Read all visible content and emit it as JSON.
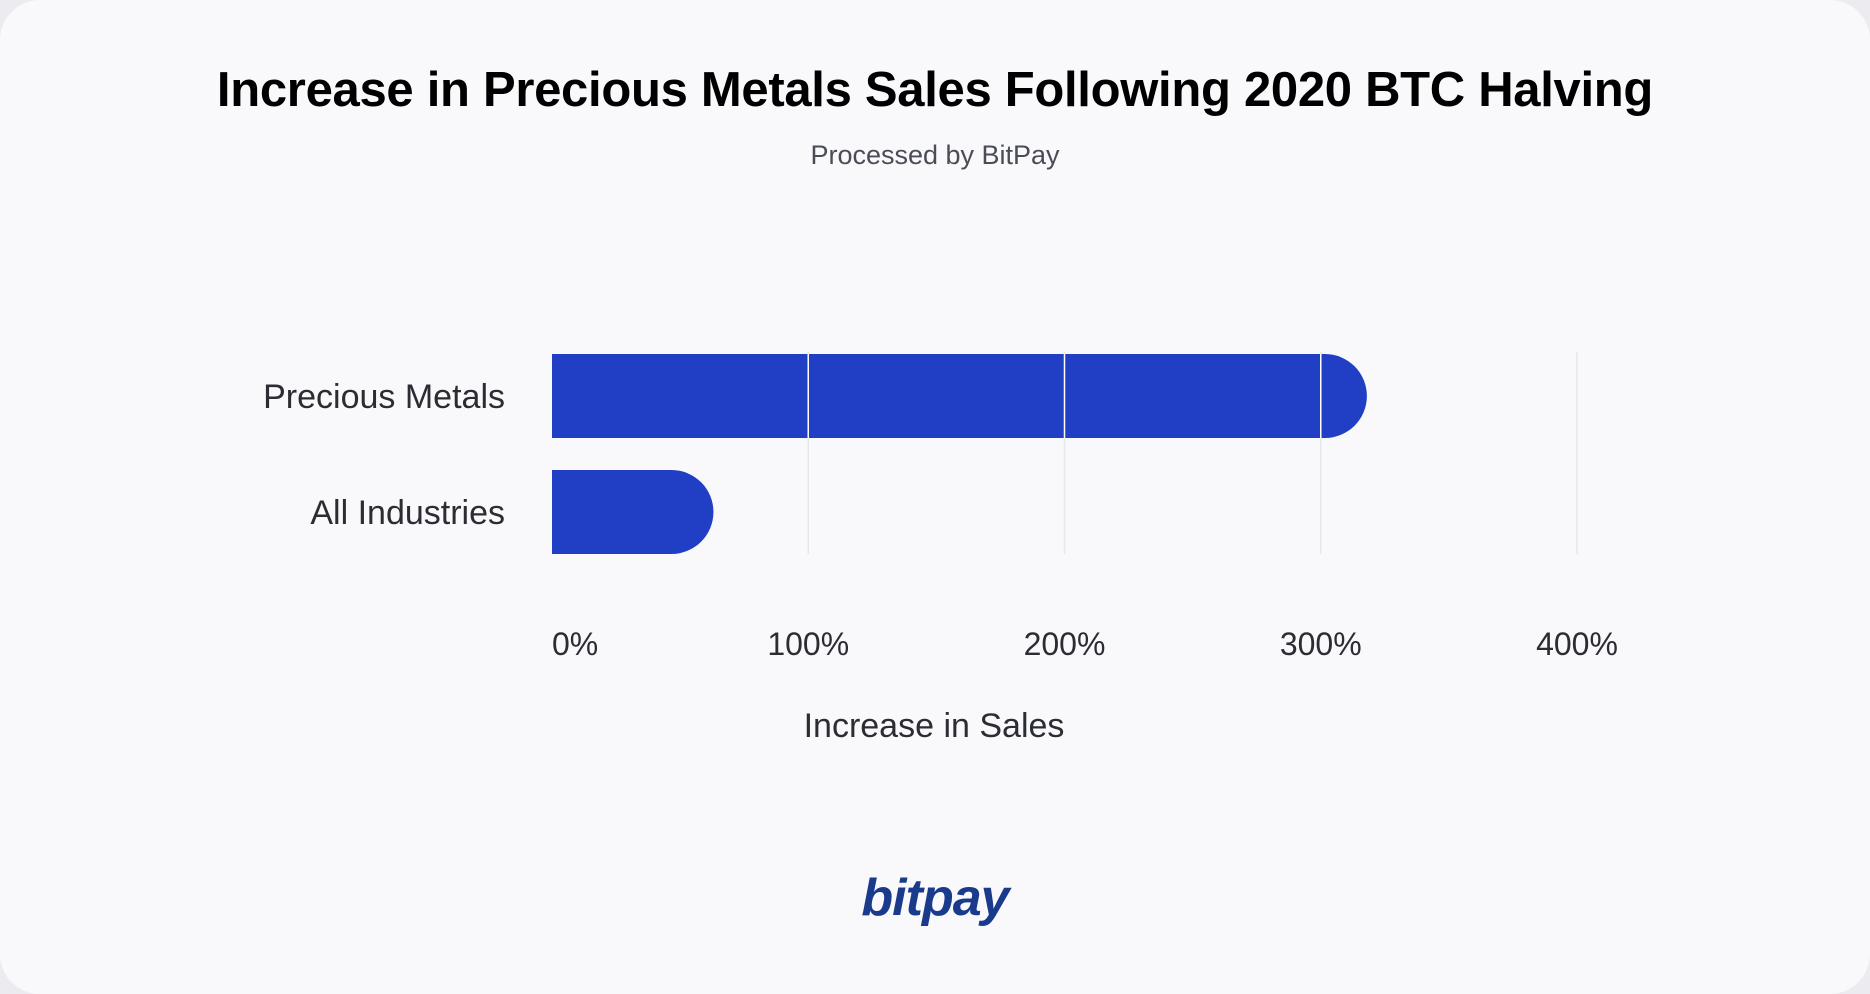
{
  "chart_data": {
    "type": "bar",
    "orientation": "horizontal",
    "title": "Increase in Precious Metals Sales Following 2020 BTC Halving",
    "subtitle": "Processed by BitPay",
    "categories": [
      "Precious Metals",
      "All Industries"
    ],
    "values": [
      318,
      63
    ],
    "xlabel": "Increase in Sales",
    "ylabel": "",
    "xlim": [
      0,
      400
    ],
    "x_ticks": [
      0,
      100,
      200,
      300,
      400
    ],
    "x_tick_labels": [
      "0%",
      "100%",
      "200%",
      "300%",
      "400%"
    ],
    "grid": "vertical",
    "bar_color": "#213fc5",
    "grid_color": "#e6e6ec"
  },
  "brand": {
    "logo_text": "bitpay",
    "logo_color": "#1a3b8c"
  }
}
